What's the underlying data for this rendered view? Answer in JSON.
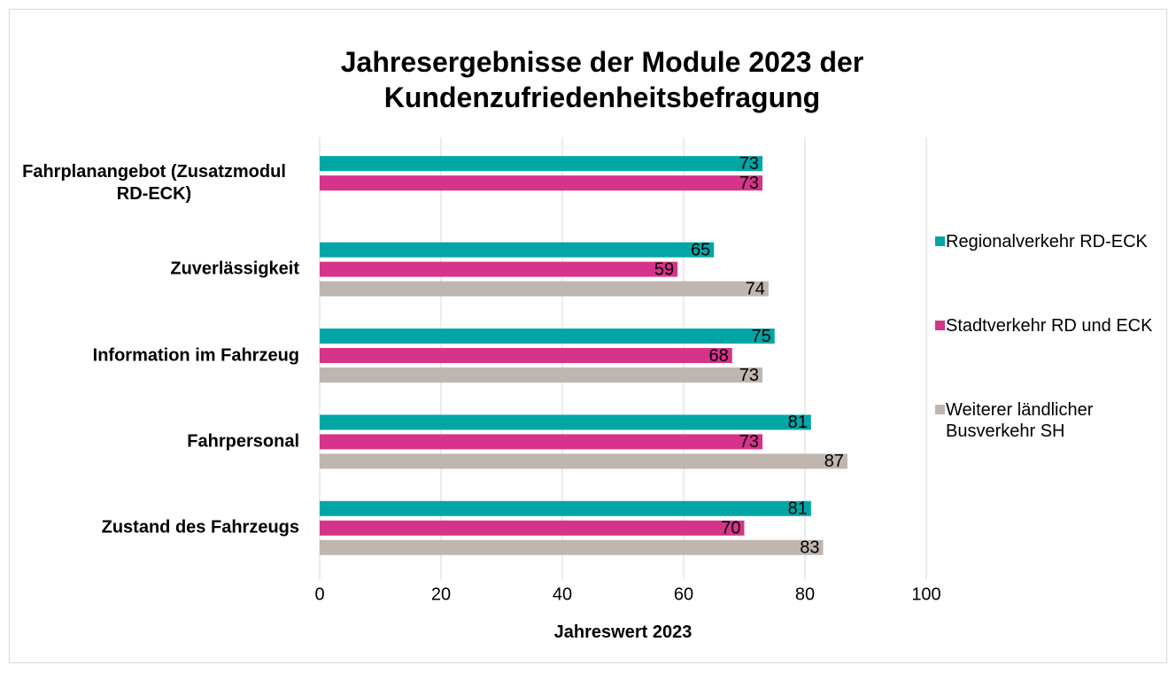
{
  "chart_data": {
    "type": "bar",
    "orientation": "horizontal",
    "title": "Jahresergebnisse der Module 2023 der Kundenzufriedenheitsbefragung",
    "categories": [
      "Fahrplanangebot (Zusatzmodul RD-ECK)",
      "Zuverlässigkeit",
      "Information im Fahrzeug",
      "Fahrpersonal",
      "Zustand des Fahrzeugs"
    ],
    "series": [
      {
        "name": "Regionalverkehr RD-ECK",
        "color": "#00a6a6",
        "values": [
          73,
          65,
          75,
          81,
          81
        ]
      },
      {
        "name": "Stadtverkehr RD und ECK",
        "color": "#d6338a",
        "values": [
          73,
          59,
          68,
          73,
          70
        ]
      },
      {
        "name": "Weiterer ländlicher Busverkehr SH",
        "color": "#bfb6af",
        "values": [
          null,
          74,
          73,
          87,
          83
        ]
      }
    ],
    "xlabel": "Jahreswert 2023",
    "xlim": [
      0,
      100
    ],
    "xticks": [
      0,
      20,
      40,
      60,
      80,
      100
    ],
    "grid": true,
    "legend": "right"
  }
}
